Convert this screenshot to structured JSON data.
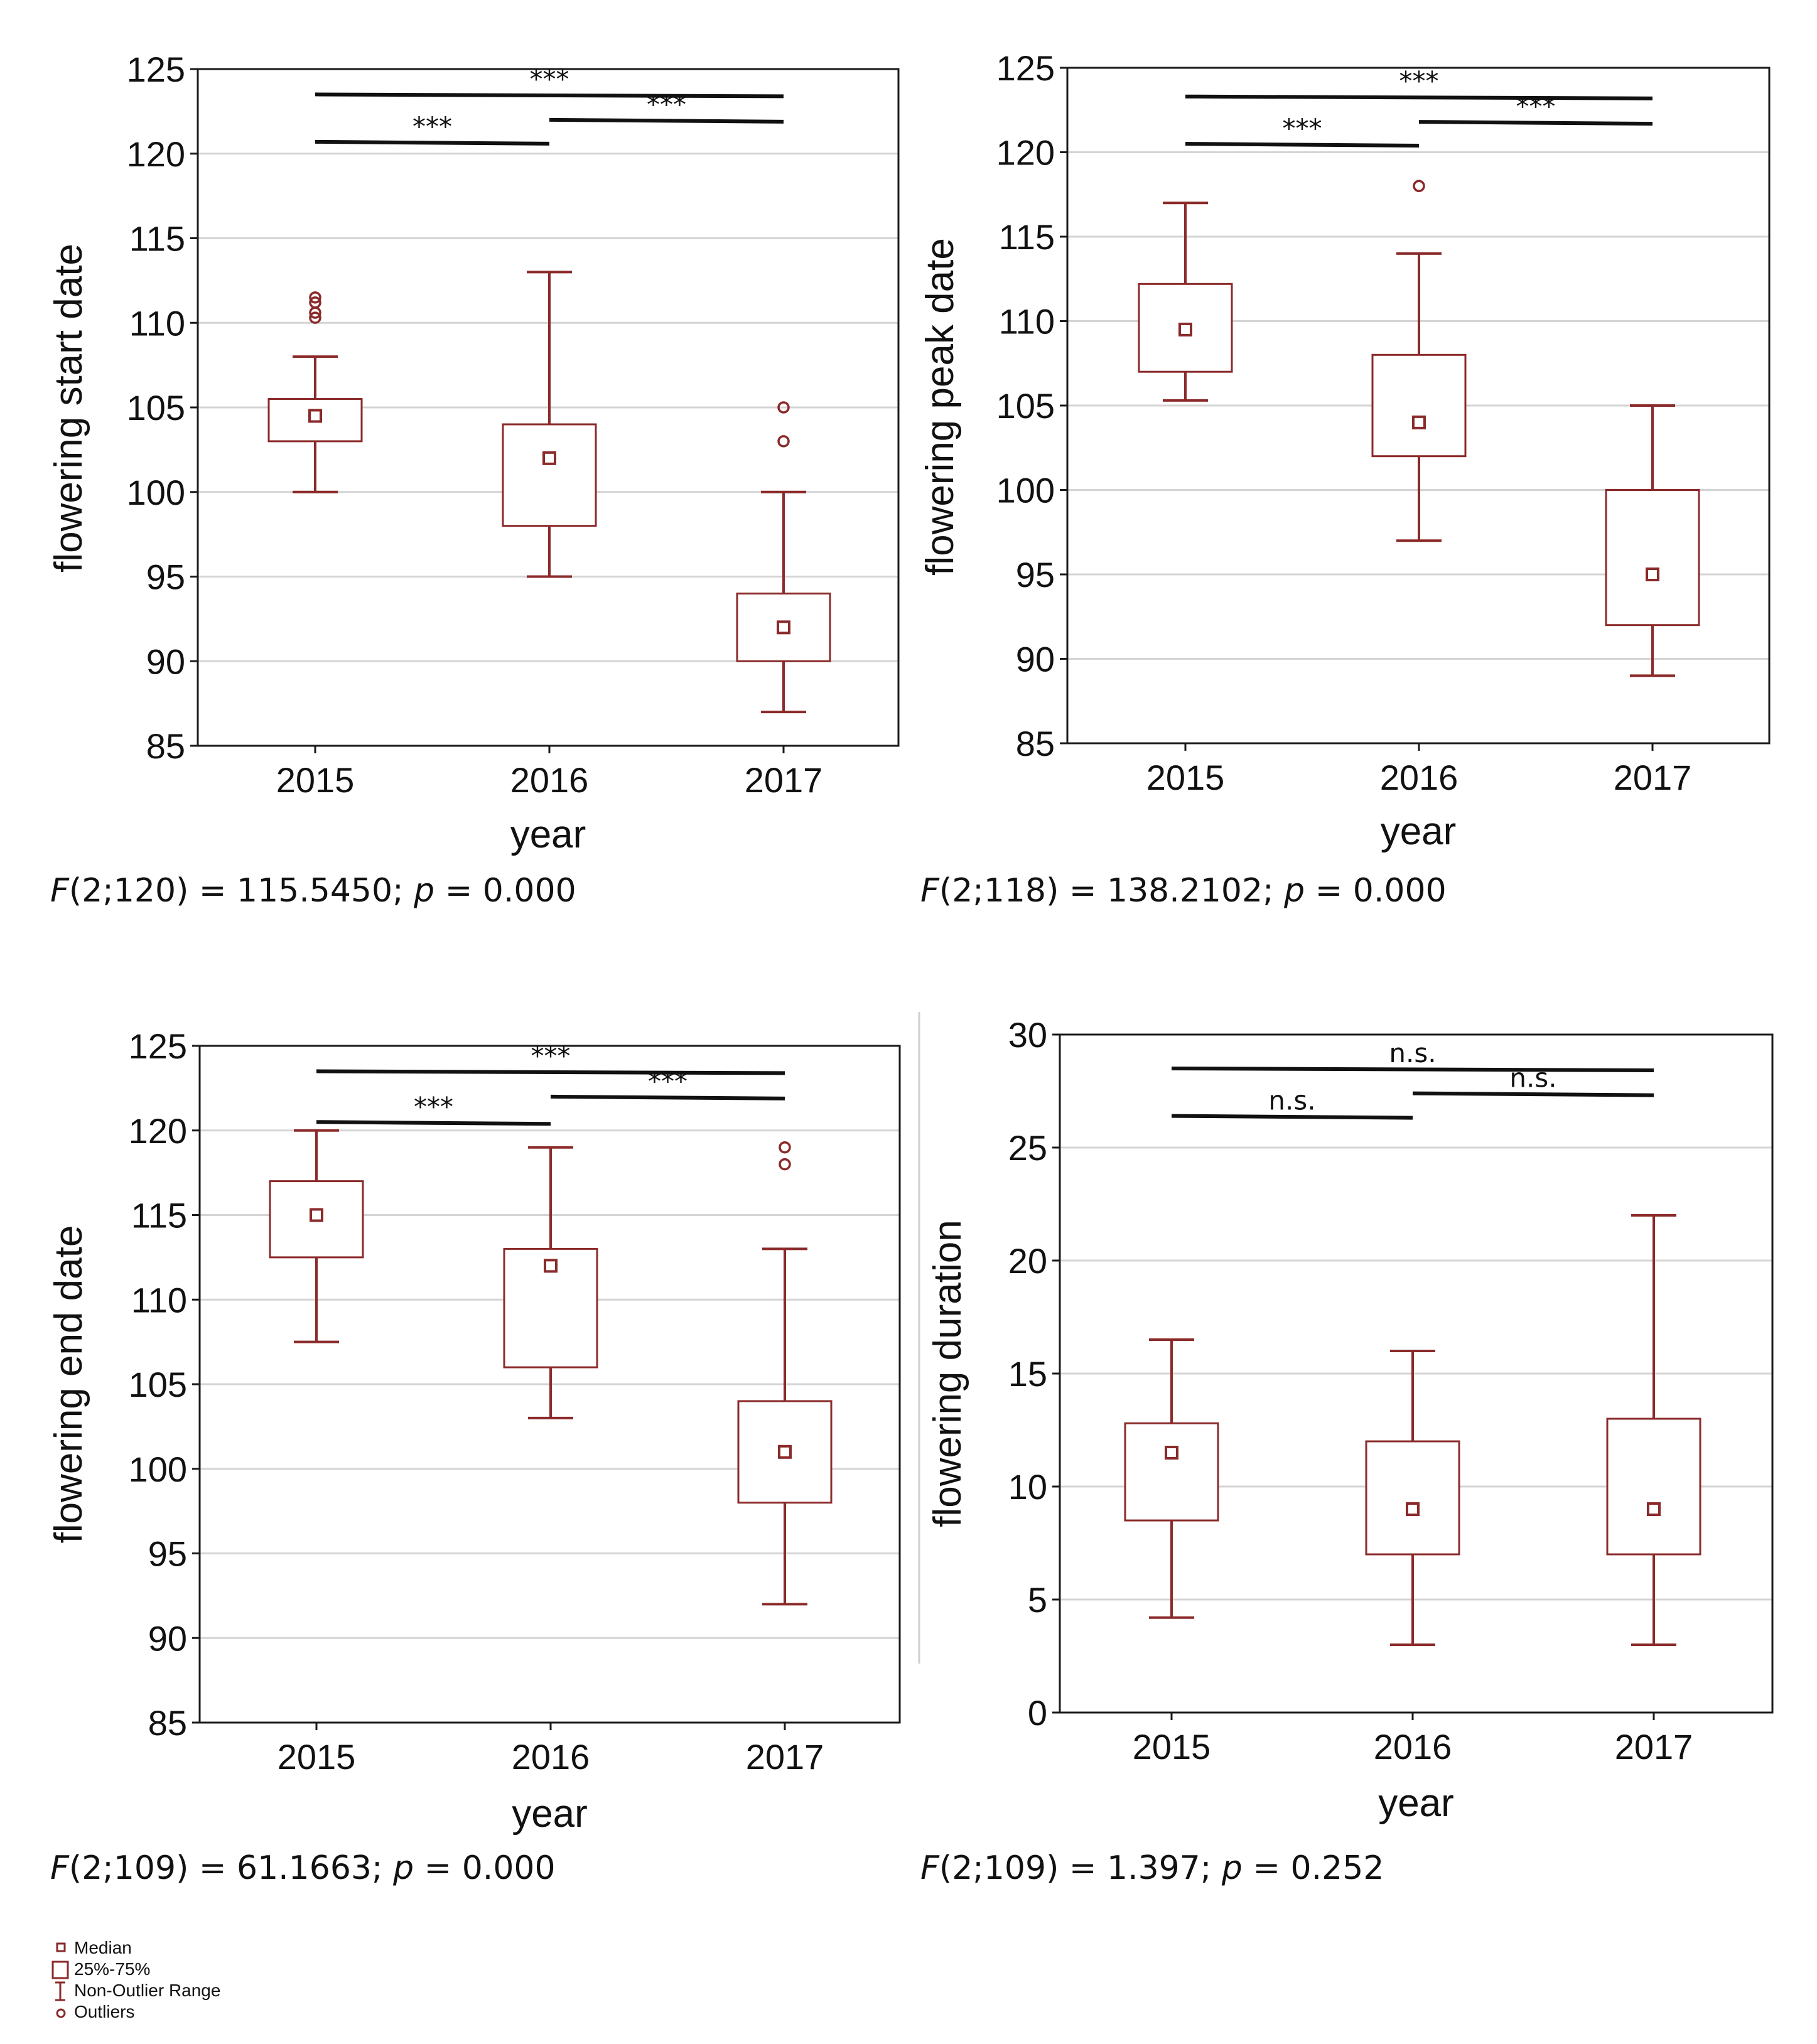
{
  "colors": {
    "box": "#8b2a2a",
    "grid": "#d4d4d4",
    "axis": "#1a1a1a",
    "bar": "#111111"
  },
  "chart_data": [
    {
      "type": "box",
      "id": "start",
      "title": "",
      "xlabel": "year",
      "ylabel": "flowering start date",
      "categories": [
        "2015",
        "2016",
        "2017"
      ],
      "ylim": [
        85,
        125
      ],
      "yticks": [
        85,
        90,
        95,
        100,
        105,
        110,
        115,
        120,
        125
      ],
      "grid": true,
      "boxes": [
        {
          "median": 104.5,
          "q1": 103,
          "q3": 105.5,
          "whisker_low": 100,
          "whisker_high": 108,
          "outliers": [
            110.3,
            110.6,
            111.2,
            111.5
          ]
        },
        {
          "median": 102,
          "q1": 98,
          "q3": 104,
          "whisker_low": 95,
          "whisker_high": 113,
          "outliers": []
        },
        {
          "median": 92,
          "q1": 90,
          "q3": 94,
          "whisker_low": 87,
          "whisker_high": 100,
          "outliers": [
            103,
            105
          ]
        }
      ],
      "significance": [
        {
          "from": 0,
          "to": 2,
          "label": "***",
          "y": 123.5
        },
        {
          "from": 1,
          "to": 2,
          "label": "***",
          "y": 122
        },
        {
          "from": 0,
          "to": 1,
          "label": "***",
          "y": 120.7
        }
      ],
      "stat_prefix": "F",
      "stat_args": "(2;120) = 115.5450; ",
      "stat_p": "p",
      "stat_p_value": " = 0.000"
    },
    {
      "type": "box",
      "id": "peak",
      "title": "",
      "xlabel": "year",
      "ylabel": "flowering peak date",
      "categories": [
        "2015",
        "2016",
        "2017"
      ],
      "ylim": [
        85,
        125
      ],
      "yticks": [
        85,
        90,
        95,
        100,
        105,
        110,
        115,
        120,
        125
      ],
      "grid": true,
      "boxes": [
        {
          "median": 109.5,
          "q1": 107,
          "q3": 112.2,
          "whisker_low": 105.3,
          "whisker_high": 117,
          "outliers": []
        },
        {
          "median": 104,
          "q1": 102,
          "q3": 108,
          "whisker_low": 97,
          "whisker_high": 114,
          "outliers": [
            118
          ]
        },
        {
          "median": 95,
          "q1": 92,
          "q3": 100,
          "whisker_low": 89,
          "whisker_high": 105,
          "outliers": []
        }
      ],
      "significance": [
        {
          "from": 0,
          "to": 2,
          "label": "***",
          "y": 123.3
        },
        {
          "from": 1,
          "to": 2,
          "label": "***",
          "y": 121.8
        },
        {
          "from": 0,
          "to": 1,
          "label": "***",
          "y": 120.5
        }
      ],
      "stat_prefix": "F",
      "stat_args": "(2;118) = 138.2102; ",
      "stat_p": "p",
      "stat_p_value": " = 0.000"
    },
    {
      "type": "box",
      "id": "end",
      "title": "",
      "xlabel": "year",
      "ylabel": "flowering end date",
      "categories": [
        "2015",
        "2016",
        "2017"
      ],
      "ylim": [
        85,
        125
      ],
      "yticks": [
        85,
        90,
        95,
        100,
        105,
        110,
        115,
        120,
        125
      ],
      "grid": true,
      "boxes": [
        {
          "median": 115,
          "q1": 112.5,
          "q3": 117,
          "whisker_low": 107.5,
          "whisker_high": 120,
          "outliers": []
        },
        {
          "median": 112,
          "q1": 106,
          "q3": 113,
          "whisker_low": 103,
          "whisker_high": 119,
          "outliers": []
        },
        {
          "median": 101,
          "q1": 98,
          "q3": 104,
          "whisker_low": 92,
          "whisker_high": 113,
          "outliers": [
            118,
            119
          ]
        }
      ],
      "significance": [
        {
          "from": 0,
          "to": 2,
          "label": "***",
          "y": 123.5
        },
        {
          "from": 1,
          "to": 2,
          "label": "***",
          "y": 122
        },
        {
          "from": 0,
          "to": 1,
          "label": "***",
          "y": 120.5
        }
      ],
      "stat_prefix": "F",
      "stat_args": "(2;109) = 61.1663; ",
      "stat_p": "p",
      "stat_p_value": " = 0.000"
    },
    {
      "type": "box",
      "id": "duration",
      "title": "",
      "xlabel": "year",
      "ylabel": "flowering duration",
      "categories": [
        "2015",
        "2016",
        "2017"
      ],
      "ylim": [
        0,
        30
      ],
      "yticks": [
        0,
        5,
        10,
        15,
        20,
        25,
        30
      ],
      "grid": true,
      "boxes": [
        {
          "median": 11.5,
          "q1": 8.5,
          "q3": 12.8,
          "whisker_low": 4.2,
          "whisker_high": 16.5,
          "outliers": []
        },
        {
          "median": 9,
          "q1": 7,
          "q3": 12,
          "whisker_low": 3,
          "whisker_high": 16,
          "outliers": []
        },
        {
          "median": 9,
          "q1": 7,
          "q3": 13,
          "whisker_low": 3,
          "whisker_high": 22,
          "outliers": []
        }
      ],
      "significance": [
        {
          "from": 0,
          "to": 2,
          "label": "n.s.",
          "y": 28.5
        },
        {
          "from": 1,
          "to": 2,
          "label": "n.s.",
          "y": 27.4
        },
        {
          "from": 0,
          "to": 1,
          "label": "n.s.",
          "y": 26.4
        }
      ],
      "stat_prefix": "F",
      "stat_args": "(2;109) = 1.397; ",
      "stat_p": "p",
      "stat_p_value": " = 0.252"
    }
  ],
  "legend": {
    "median": "Median",
    "box": "25%-75%",
    "range": "Non-Outlier Range",
    "outliers": "Outliers"
  }
}
